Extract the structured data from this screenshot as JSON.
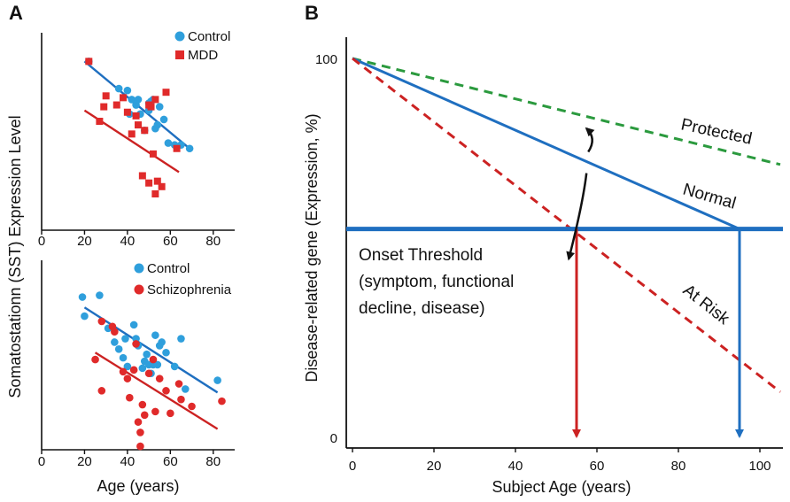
{
  "panels": {
    "a_label": "A",
    "b_label": "B"
  },
  "shared_ylabel": "Somatostationn (SST) Expression Level",
  "colors": {
    "blue": "#2f9fdc",
    "red": "#e02a2a",
    "line_blue": "#1f6fc0",
    "line_red": "#cc2222",
    "green": "#2b9a3e",
    "axis": "#111111"
  },
  "chart_data": [
    {
      "id": "a_top",
      "type": "scatter",
      "xlabel": "",
      "xlim": [
        0,
        90
      ],
      "ylim": [
        0,
        1
      ],
      "xticks": [
        0,
        20,
        40,
        60,
        80
      ],
      "legend": [
        {
          "name": "Control",
          "marker": "circle",
          "color": "#2f9fdc"
        },
        {
          "name": "MDD",
          "marker": "square",
          "color": "#e02a2a"
        }
      ],
      "series": [
        {
          "name": "Control",
          "marker": "circle",
          "color": "#2f9fdc",
          "points": [
            [
              22,
              0.93
            ],
            [
              36,
              0.78
            ],
            [
              40,
              0.77
            ],
            [
              41,
              0.64
            ],
            [
              42,
              0.72
            ],
            [
              44,
              0.69
            ],
            [
              45,
              0.72
            ],
            [
              46,
              0.64
            ],
            [
              48,
              0.55
            ],
            [
              50,
              0.7
            ],
            [
              50,
              0.66
            ],
            [
              51,
              0.71
            ],
            [
              52,
              0.72
            ],
            [
              53,
              0.56
            ],
            [
              54,
              0.58
            ],
            [
              55,
              0.68
            ],
            [
              57,
              0.61
            ],
            [
              59,
              0.48
            ],
            [
              62,
              0.47
            ],
            [
              65,
              0.47
            ],
            [
              69,
              0.45
            ]
          ]
        },
        {
          "name": "MDD",
          "marker": "square",
          "color": "#e02a2a",
          "points": [
            [
              22,
              0.93
            ],
            [
              27,
              0.6
            ],
            [
              29,
              0.68
            ],
            [
              30,
              0.74
            ],
            [
              35,
              0.69
            ],
            [
              38,
              0.73
            ],
            [
              40,
              0.65
            ],
            [
              42,
              0.53
            ],
            [
              44,
              0.63
            ],
            [
              45,
              0.58
            ],
            [
              47,
              0.3
            ],
            [
              48,
              0.55
            ],
            [
              50,
              0.69
            ],
            [
              50,
              0.26
            ],
            [
              51,
              0.68
            ],
            [
              52,
              0.42
            ],
            [
              53,
              0.72
            ],
            [
              53,
              0.2
            ],
            [
              54,
              0.27
            ],
            [
              56,
              0.24
            ],
            [
              58,
              0.76
            ],
            [
              63,
              0.45
            ]
          ]
        }
      ],
      "trend_lines": [
        {
          "name": "Control",
          "x": [
            20,
            70
          ],
          "y": [
            0.93,
            0.44
          ]
        },
        {
          "name": "MDD",
          "x": [
            20,
            64
          ],
          "y": [
            0.66,
            0.32
          ]
        }
      ]
    },
    {
      "id": "a_bottom",
      "type": "scatter",
      "xlabel": "Age (years)",
      "xlim": [
        0,
        90
      ],
      "ylim": [
        0,
        1
      ],
      "xticks": [
        0,
        20,
        40,
        60,
        80
      ],
      "legend": [
        {
          "name": "Control",
          "marker": "circle",
          "color": "#2f9fdc"
        },
        {
          "name": "Schizophrenia",
          "marker": "circle",
          "color": "#e02a2a"
        }
      ],
      "series": [
        {
          "name": "Control",
          "marker": "circle",
          "color": "#2f9fdc",
          "points": [
            [
              19,
              0.88
            ],
            [
              20,
              0.77
            ],
            [
              27,
              0.89
            ],
            [
              31,
              0.7
            ],
            [
              34,
              0.62
            ],
            [
              36,
              0.58
            ],
            [
              38,
              0.53
            ],
            [
              39,
              0.64
            ],
            [
              40,
              0.48
            ],
            [
              43,
              0.72
            ],
            [
              44,
              0.64
            ],
            [
              45,
              0.6
            ],
            [
              47,
              0.47
            ],
            [
              48,
              0.51
            ],
            [
              49,
              0.55
            ],
            [
              50,
              0.49
            ],
            [
              51,
              0.44
            ],
            [
              52,
              0.49
            ],
            [
              53,
              0.66
            ],
            [
              54,
              0.49
            ],
            [
              55,
              0.6
            ],
            [
              56,
              0.62
            ],
            [
              58,
              0.56
            ],
            [
              62,
              0.48
            ],
            [
              65,
              0.64
            ],
            [
              67,
              0.35
            ],
            [
              82,
              0.4
            ]
          ]
        },
        {
          "name": "Schizophrenia",
          "marker": "circle",
          "color": "#e02a2a",
          "points": [
            [
              25,
              0.52
            ],
            [
              28,
              0.34
            ],
            [
              28,
              0.74
            ],
            [
              33,
              0.71
            ],
            [
              34,
              0.68
            ],
            [
              38,
              0.45
            ],
            [
              40,
              0.41
            ],
            [
              41,
              0.3
            ],
            [
              43,
              0.46
            ],
            [
              44,
              0.61
            ],
            [
              45,
              0.16
            ],
            [
              46,
              0.02
            ],
            [
              46,
              0.1
            ],
            [
              47,
              0.26
            ],
            [
              48,
              0.2
            ],
            [
              50,
              0.44
            ],
            [
              52,
              0.52
            ],
            [
              53,
              0.22
            ],
            [
              55,
              0.41
            ],
            [
              58,
              0.34
            ],
            [
              60,
              0.21
            ],
            [
              64,
              0.38
            ],
            [
              65,
              0.29
            ],
            [
              70,
              0.25
            ],
            [
              84,
              0.28
            ]
          ]
        }
      ],
      "trend_lines": [
        {
          "name": "Control",
          "x": [
            20,
            82
          ],
          "y": [
            0.82,
            0.33
          ]
        },
        {
          "name": "Schizophrenia",
          "x": [
            25,
            82
          ],
          "y": [
            0.56,
            0.12
          ]
        }
      ]
    },
    {
      "id": "b",
      "type": "line",
      "xlabel": "Subject Age (years)",
      "ylabel": "Disease-related gene (Expression, %)",
      "xlim": [
        0,
        105
      ],
      "ylim": [
        0,
        102
      ],
      "xticks": [
        0,
        20,
        40,
        60,
        80,
        100
      ],
      "yticks": [
        0,
        100
      ],
      "series": [
        {
          "name": "Protected",
          "style": "dashed",
          "color": "#2b9a3e",
          "x": [
            0,
            105
          ],
          "y": [
            100,
            72
          ]
        },
        {
          "name": "Normal",
          "style": "solid",
          "color": "#1f6fc0",
          "x": [
            0,
            95
          ],
          "y": [
            100,
            55
          ]
        },
        {
          "name": "At Risk",
          "style": "dashed",
          "color": "#cc2222",
          "x": [
            0,
            105
          ],
          "y": [
            100,
            12
          ]
        }
      ],
      "threshold": {
        "y": 55,
        "label_lines": [
          "Onset Threshold",
          "(symptom, functional",
          "decline, disease)"
        ]
      },
      "onsets": [
        {
          "series": "At Risk",
          "x": 55,
          "color": "#cc2222"
        },
        {
          "series": "Normal",
          "x": 95,
          "color": "#1f6fc0"
        }
      ],
      "arrow_at_x": 57
    }
  ]
}
